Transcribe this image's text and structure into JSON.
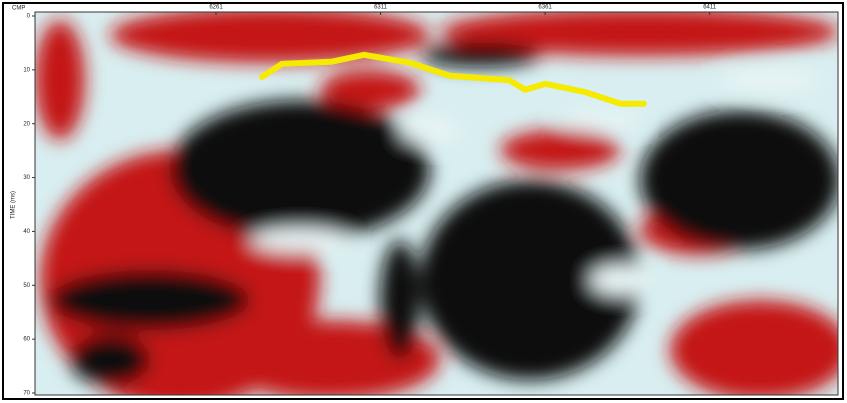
{
  "chart_data": {
    "type": "seismic",
    "xlabel": "CMP",
    "ylabel": "TIME (ms)",
    "xlim": [
      6206,
      6450
    ],
    "xticks": [
      6261,
      6311,
      6361,
      6411
    ],
    "ylim": [
      0,
      70
    ],
    "yticks": [
      0,
      10,
      20,
      30,
      40,
      50,
      60,
      70
    ],
    "y_inverted": true,
    "series": [
      {
        "color": "#f5ea00",
        "x": [
          6275,
          6281,
          6296,
          6306,
          6320,
          6332,
          6350,
          6355,
          6361,
          6373,
          6384,
          6391
        ],
        "values": [
          11.3,
          8.9,
          8.5,
          7.2,
          8.7,
          11.1,
          11.9,
          13.7,
          12.6,
          14.1,
          16.3,
          16.3
        ]
      }
    ]
  }
}
